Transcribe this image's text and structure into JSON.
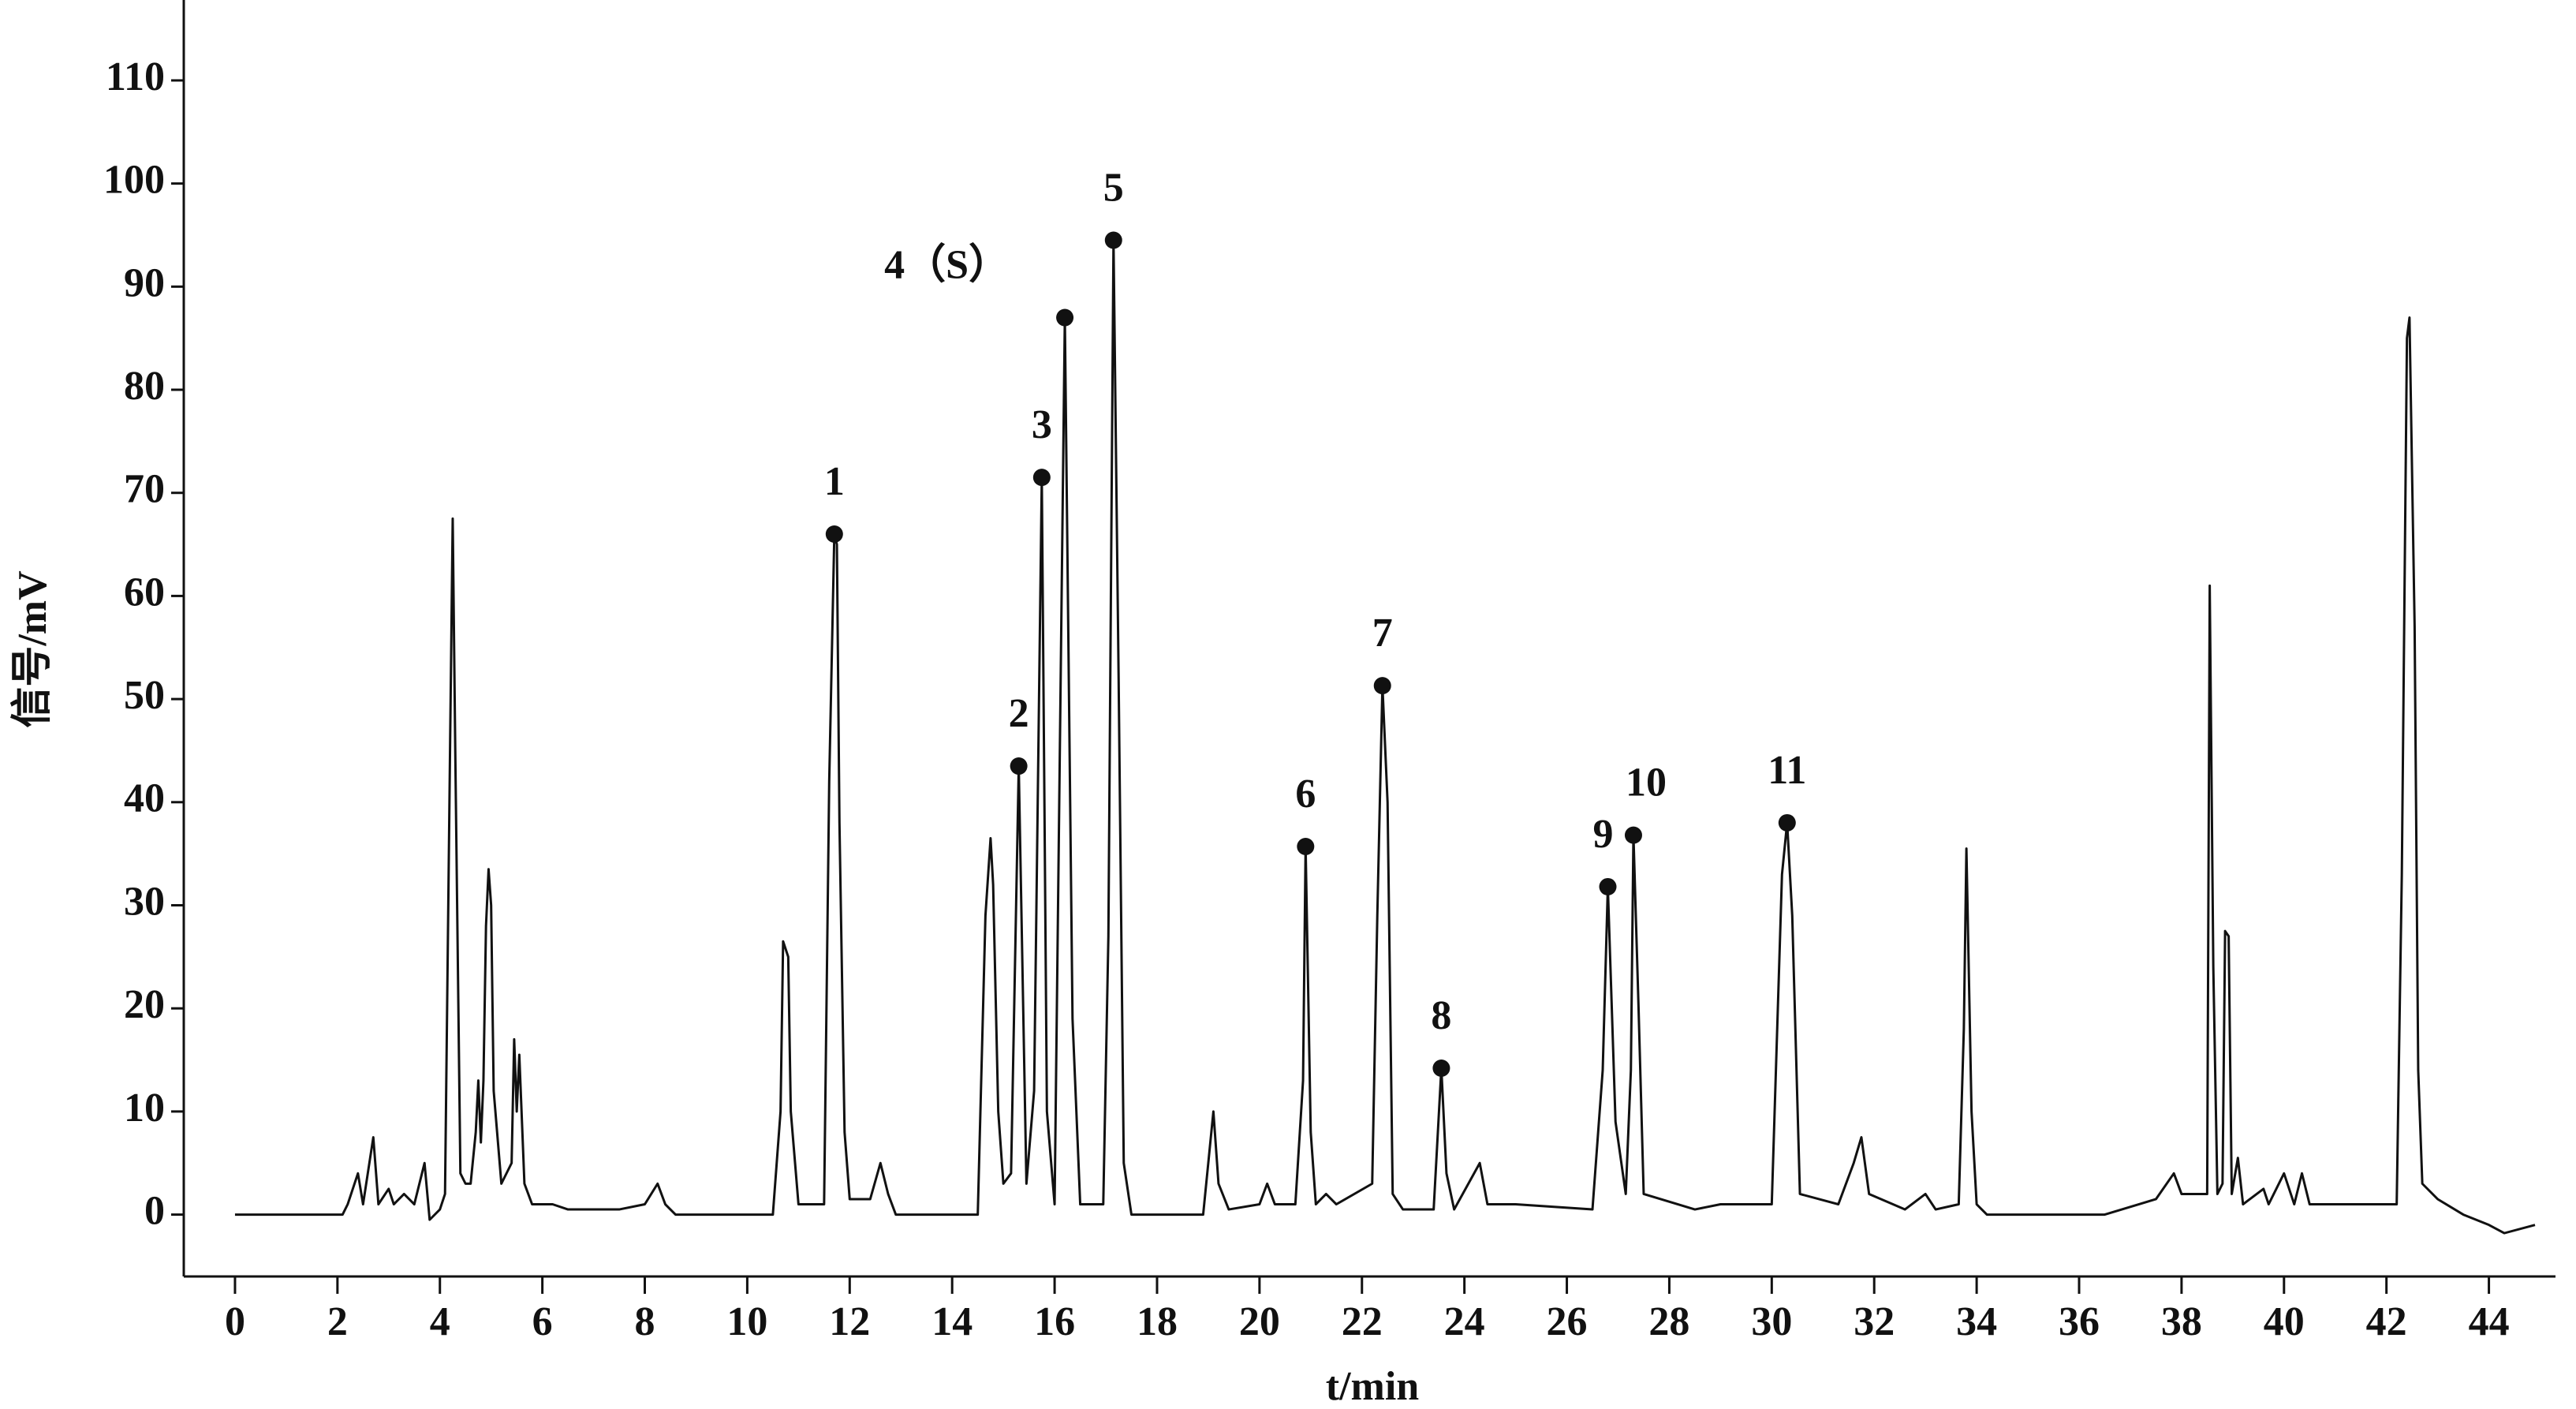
{
  "chart_data": {
    "type": "line",
    "x_label": "t/min",
    "y_label": "信号/mV",
    "xlim": [
      -1,
      45.3
    ],
    "ylim": [
      -6,
      117.8
    ],
    "xticks": [
      0,
      2,
      4,
      6,
      8,
      10,
      12,
      14,
      16,
      18,
      20,
      22,
      24,
      26,
      28,
      30,
      32,
      34,
      36,
      38,
      40,
      42,
      44
    ],
    "yticks": [
      0,
      10,
      20,
      30,
      40,
      50,
      60,
      70,
      80,
      90,
      100,
      110
    ],
    "series": [
      {
        "color": "#111111",
        "x": [
          0,
          2.1,
          2.2,
          2.4,
          2.5,
          2.7,
          2.8,
          3.0,
          3.1,
          3.3,
          3.5,
          3.7,
          3.8,
          4.0,
          4.1,
          4.2,
          4.25,
          4.3,
          4.4,
          4.5,
          4.6,
          4.7,
          4.75,
          4.8,
          4.85,
          4.9,
          4.95,
          5.0,
          5.05,
          5.2,
          5.4,
          5.45,
          5.5,
          5.55,
          5.65,
          5.8,
          6.2,
          6.5,
          7.5,
          8.0,
          8.25,
          8.4,
          8.6,
          10.5,
          10.65,
          10.7,
          10.8,
          10.85,
          11.0,
          11.5,
          11.6,
          11.7,
          11.75,
          11.8,
          11.9,
          12.0,
          12.4,
          12.6,
          12.75,
          12.9,
          14.5,
          14.65,
          14.75,
          14.8,
          14.9,
          15.0,
          15.15,
          15.3,
          15.45,
          15.6,
          15.75,
          15.85,
          16.0,
          16.2,
          16.35,
          16.5,
          16.95,
          17.05,
          17.15,
          17.25,
          17.35,
          17.5,
          18.9,
          19.0,
          19.1,
          19.2,
          19.4,
          20.0,
          20.15,
          20.3,
          20.7,
          20.85,
          20.9,
          21.0,
          21.1,
          21.3,
          21.5,
          22.2,
          22.3,
          22.4,
          22.5,
          22.6,
          22.8,
          23.4,
          23.55,
          23.65,
          23.8,
          24.3,
          24.45,
          25.0,
          26.5,
          26.7,
          26.8,
          26.95,
          27.15,
          27.25,
          27.3,
          27.4,
          27.5,
          28.5,
          29.0,
          30.0,
          30.2,
          30.3,
          30.4,
          30.55,
          31.3,
          31.6,
          31.75,
          31.9,
          32.6,
          33.0,
          33.2,
          33.65,
          33.75,
          33.8,
          33.9,
          34.0,
          34.2,
          36.5,
          37.5,
          37.85,
          38.0,
          38.5,
          38.55,
          38.62,
          38.7,
          38.8,
          38.85,
          38.92,
          38.98,
          39.1,
          39.2,
          39.6,
          39.7,
          40.0,
          40.2,
          40.35,
          40.5,
          42.2,
          42.3,
          42.4,
          42.45,
          42.55,
          42.62,
          42.7,
          43.0,
          43.5,
          44.0,
          44.3,
          44.9
        ],
        "values": [
          0,
          0,
          1,
          4,
          1,
          7.5,
          1,
          2.5,
          1,
          2,
          1,
          5,
          -0.5,
          0.5,
          2,
          46,
          67.5,
          45,
          4,
          3,
          3,
          8,
          13,
          7,
          13,
          28,
          33.5,
          30,
          12,
          3,
          5,
          17,
          10,
          15.5,
          3,
          1,
          1,
          0.5,
          0.5,
          1,
          3,
          1,
          0,
          0,
          10,
          26.5,
          25,
          10,
          1,
          1,
          42,
          66,
          65,
          38,
          8,
          1.5,
          1.5,
          5,
          2,
          0,
          0,
          29,
          36.5,
          32,
          10,
          3,
          4,
          43.5,
          3,
          12,
          71.5,
          10,
          1,
          87,
          19,
          1,
          1,
          27,
          94.5,
          52,
          5,
          0,
          0,
          5,
          10,
          3,
          0.5,
          1,
          3,
          1,
          1,
          13,
          35.7,
          8,
          1,
          2,
          1,
          3,
          29,
          51.3,
          40,
          2,
          0.5,
          0.5,
          14.2,
          4,
          0.5,
          5,
          1,
          1,
          0.5,
          14,
          31.8,
          9,
          2,
          14,
          36.8,
          20,
          2,
          0.5,
          1,
          1,
          33,
          38,
          29,
          2,
          1,
          5,
          7.5,
          2,
          0.5,
          2,
          0.5,
          1,
          18,
          35.5,
          10,
          1,
          0,
          0,
          1.5,
          4,
          2,
          2,
          61,
          24,
          2,
          3,
          27.5,
          27,
          2,
          5.5,
          1,
          2.5,
          1,
          4,
          1,
          4,
          1,
          1,
          33,
          85,
          87,
          57,
          14,
          3,
          1.5,
          0,
          -1,
          -1.8,
          -1
        ]
      }
    ],
    "annotations": [
      {
        "label": "1",
        "x": 11.7,
        "y": 66
      },
      {
        "label": "2",
        "x": 15.3,
        "y": 43.5
      },
      {
        "label": "3",
        "x": 15.75,
        "y": 71.5
      },
      {
        "label": "4（S）",
        "x": 16.2,
        "y": 87
      },
      {
        "label": "5",
        "x": 17.15,
        "y": 94.5
      },
      {
        "label": "6",
        "x": 20.9,
        "y": 35.7
      },
      {
        "label": "7",
        "x": 22.4,
        "y": 51.3
      },
      {
        "label": "8",
        "x": 23.55,
        "y": 14.2
      },
      {
        "label": "9",
        "x": 26.8,
        "y": 31.8
      },
      {
        "label": "10",
        "x": 27.3,
        "y": 36.8
      },
      {
        "label": "11",
        "x": 30.3,
        "y": 38
      }
    ]
  }
}
